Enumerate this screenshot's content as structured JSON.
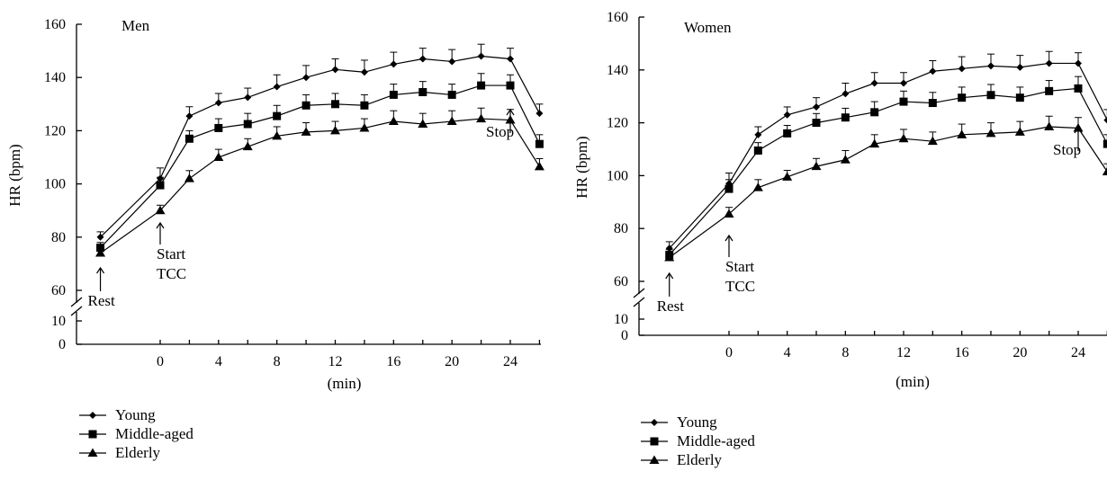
{
  "chart_data": [
    {
      "type": "line",
      "title": "Men",
      "xlabel": "(min)",
      "ylabel": "HR (bpm)",
      "xlim": [
        -6.0,
        26.0
      ],
      "ylim_upper": [
        55,
        160
      ],
      "ylim_lower": [
        0,
        10
      ],
      "axis_break": true,
      "x_ticks": [
        0,
        4,
        8,
        12,
        16,
        20,
        24
      ],
      "y_ticks": [
        60,
        80,
        100,
        120,
        140,
        160
      ],
      "y_ticks_lower": [
        0,
        10
      ],
      "x": [
        -4.1,
        0,
        2,
        4,
        6,
        8,
        10,
        12,
        14,
        16,
        18,
        20,
        22,
        24,
        26
      ],
      "series": [
        {
          "name": "Young",
          "marker": "diamond",
          "values": [
            80,
            102,
            125.5,
            130.5,
            132.5,
            136.5,
            140,
            143,
            142,
            145,
            147,
            146,
            148,
            147,
            126.5
          ],
          "errors": [
            2,
            4,
            3.5,
            3.5,
            3.5,
            4.5,
            4.5,
            4,
            4.5,
            4.5,
            4,
            4.5,
            4.5,
            4,
            3.5
          ]
        },
        {
          "name": "Middle-aged",
          "marker": "square",
          "values": [
            76,
            99.5,
            117,
            121,
            122.5,
            125.5,
            129.5,
            130,
            129.5,
            133.5,
            134.5,
            133.5,
            137,
            137,
            115
          ],
          "errors": [
            2,
            3,
            3,
            3.5,
            4,
            4,
            4,
            4,
            4,
            4,
            4,
            4,
            4.5,
            4,
            3.5
          ]
        },
        {
          "name": "Elderly",
          "marker": "triangle",
          "values": [
            74,
            90,
            102,
            110,
            114,
            118,
            119.5,
            120,
            121,
            123.5,
            122.5,
            123.5,
            124.5,
            124,
            106.5
          ],
          "errors": [
            2,
            2,
            3,
            3,
            3,
            3.5,
            3.5,
            3.5,
            3.5,
            4,
            4,
            4,
            4,
            4,
            3
          ]
        }
      ],
      "annotations": [
        {
          "text": "Rest",
          "x": -4.1
        },
        {
          "text": "Start",
          "text2": "TCC",
          "x": 0
        },
        {
          "text": "Stop",
          "x": 24
        }
      ],
      "legend_position": "bottom-left"
    },
    {
      "type": "line",
      "title": "Women",
      "xlabel": "(min)",
      "ylabel": "HR (bpm)",
      "xlim": [
        -6.2,
        26.0
      ],
      "ylim_upper": [
        55,
        160
      ],
      "ylim_lower": [
        0,
        10
      ],
      "axis_break": true,
      "x_ticks": [
        0,
        4,
        8,
        12,
        16,
        20,
        24
      ],
      "y_ticks": [
        60,
        80,
        100,
        120,
        140,
        160
      ],
      "y_ticks_lower": [
        0,
        10
      ],
      "x": [
        -4.1,
        0,
        2,
        4,
        6,
        8,
        10,
        12,
        14,
        16,
        18,
        20,
        22,
        24,
        26
      ],
      "series": [
        {
          "name": "Young",
          "marker": "diamond",
          "values": [
            72.5,
            97,
            115.5,
            123,
            126,
            131,
            135,
            135,
            139.5,
            140.5,
            141.5,
            141,
            142.5,
            142.5,
            121
          ],
          "errors": [
            2.5,
            4,
            3,
            3,
            3.5,
            4,
            4,
            4,
            4,
            4.5,
            4.5,
            4.5,
            4.5,
            4,
            4
          ]
        },
        {
          "name": "Middle-aged",
          "marker": "square",
          "values": [
            70,
            95,
            109.5,
            116,
            120,
            122,
            124,
            128,
            127.5,
            129.5,
            130.5,
            129.5,
            132,
            133,
            112
          ],
          "errors": [
            2,
            3.5,
            3,
            3,
            3.5,
            3.5,
            4,
            4,
            4,
            4,
            4,
            4,
            4,
            4.5,
            3.5
          ]
        },
        {
          "name": "Elderly",
          "marker": "triangle",
          "values": [
            69,
            85.5,
            95.5,
            99.5,
            103.5,
            106,
            112,
            114,
            113,
            115.5,
            116,
            116.5,
            118.5,
            118,
            101.5
          ],
          "errors": [
            2,
            2.5,
            3,
            2.5,
            3,
            3.5,
            3.5,
            3.5,
            3.5,
            4,
            4,
            4,
            4,
            4,
            3
          ]
        }
      ],
      "annotations": [
        {
          "text": "Rest",
          "x": -4.1
        },
        {
          "text": "Start",
          "text2": "TCC",
          "x": 0
        },
        {
          "text": "Stop",
          "x": 24
        }
      ],
      "legend_position": "bottom-left"
    }
  ]
}
